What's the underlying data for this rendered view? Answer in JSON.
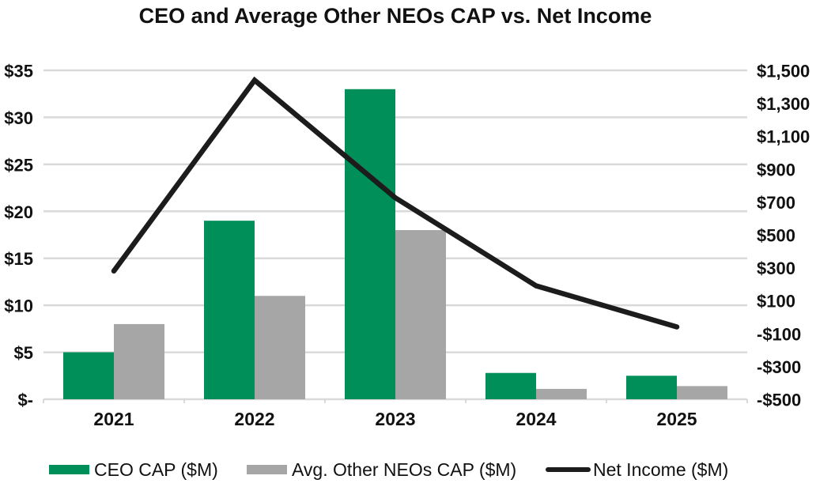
{
  "title": "CEO and Average Other NEOs CAP vs. Net Income",
  "colors": {
    "ceo_bar": "#008F58",
    "neo_bar": "#A6A6A6",
    "net_income_line": "#1C1C1C",
    "grid": "#D9D9D9",
    "text": "#111111",
    "background": "#FFFFFF"
  },
  "chart_data": {
    "type": "bar",
    "subtype": "combo-bar-line-dual-axis",
    "title": "CEO and Average Other NEOs CAP vs. Net Income",
    "categories": [
      "2021",
      "2022",
      "2023",
      "2024",
      "2025"
    ],
    "series": [
      {
        "name": "CEO CAP ($M)",
        "type": "bar",
        "axis": "left",
        "color": "#008F58",
        "values": [
          5,
          19,
          33,
          2.8,
          2.5
        ]
      },
      {
        "name": "Avg. Other NEOs CAP ($M)",
        "type": "bar",
        "axis": "left",
        "color": "#A6A6A6",
        "values": [
          8,
          11,
          18,
          1.1,
          1.4
        ]
      },
      {
        "name": "Net Income ($M)",
        "type": "line",
        "axis": "right",
        "color": "#1C1C1C",
        "values": [
          280,
          1440,
          725,
          190,
          -60
        ]
      }
    ],
    "left_axis": {
      "min": 0,
      "max": 35,
      "step": 5,
      "tick_labels": [
        "$-",
        "$5",
        "$10",
        "$15",
        "$20",
        "$25",
        "$30",
        "$35"
      ]
    },
    "right_axis": {
      "min": -500,
      "max": 1500,
      "step": 200,
      "tick_labels": [
        "-$500",
        "-$300",
        "-$100",
        "$100",
        "$300",
        "$500",
        "$700",
        "$900",
        "$1,100",
        "$1,300",
        "$1,500"
      ]
    },
    "grid": true,
    "legend_position": "bottom"
  },
  "legend": {
    "items": [
      {
        "label": "CEO CAP ($M)"
      },
      {
        "label": "Avg. Other NEOs CAP ($M)"
      },
      {
        "label": "Net Income ($M)"
      }
    ]
  }
}
